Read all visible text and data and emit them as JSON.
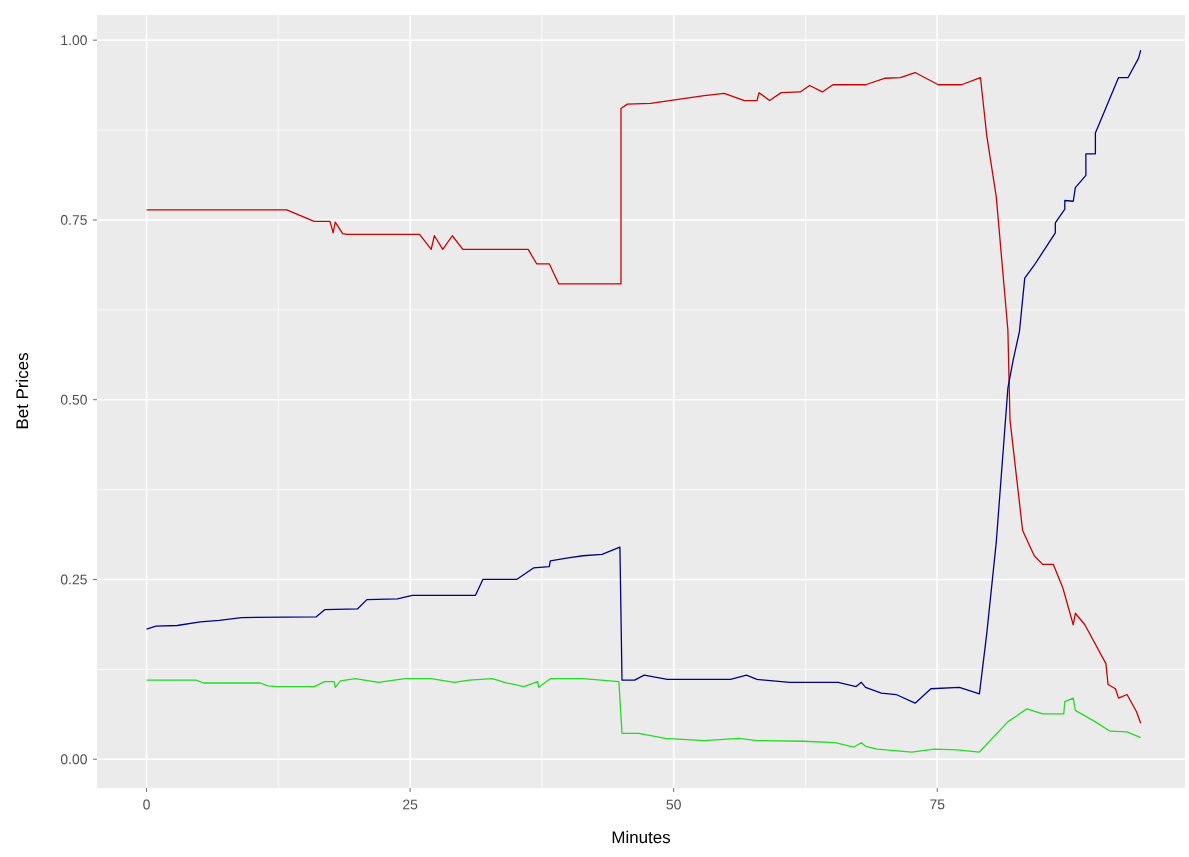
{
  "chart_data": {
    "type": "line",
    "xlabel": "Minutes",
    "ylabel": "Bet Prices",
    "xlim": [
      -4.7,
      98.5
    ],
    "ylim": [
      -0.04,
      1.035
    ],
    "xticks": [
      0,
      25,
      50,
      75
    ],
    "yticks": [
      {
        "value": 0,
        "label": "0.00"
      },
      {
        "value": 0.25,
        "label": "0.25"
      },
      {
        "value": 0.5,
        "label": "0.50"
      },
      {
        "value": 0.75,
        "label": "0.75"
      },
      {
        "value": 1.0,
        "label": "1.00"
      }
    ],
    "grid": true,
    "marker": "none",
    "line_style": "solid",
    "series": [
      {
        "color": "#cd0000",
        "x": [
          0,
          13.3,
          15.9,
          17.0,
          17.4,
          17.7,
          17.9,
          18.6,
          19.0,
          25.9,
          27.0,
          27.3,
          28.1,
          29.0,
          30.0,
          36.2,
          37.0,
          38.2,
          39.1,
          45.0,
          45.0,
          45.6,
          47.8,
          49.6,
          52.9,
          54.8,
          56.7,
          57.9,
          58.1,
          59.1,
          60.2,
          62.0,
          62.9,
          64.1,
          65.1,
          68.2,
          70.0,
          71.5,
          72.9,
          75.1,
          77.3,
          79.1,
          79.7,
          80.6,
          81.7,
          81.9,
          83.1,
          84.2,
          85.0,
          86.0,
          86.9,
          87.9,
          88.1,
          89.0,
          90.0,
          91.0,
          91.2,
          91.9,
          92.2,
          93.0,
          93.9,
          94.3
        ],
        "values": [
          0.764,
          0.764,
          0.748,
          0.748,
          0.748,
          0.732,
          0.747,
          0.731,
          0.73,
          0.73,
          0.709,
          0.728,
          0.709,
          0.728,
          0.709,
          0.709,
          0.689,
          0.689,
          0.661,
          0.661,
          0.905,
          0.911,
          0.912,
          0.916,
          0.923,
          0.926,
          0.916,
          0.916,
          0.927,
          0.916,
          0.927,
          0.928,
          0.937,
          0.928,
          0.938,
          0.938,
          0.947,
          0.948,
          0.955,
          0.938,
          0.938,
          0.948,
          0.867,
          0.782,
          0.597,
          0.472,
          0.318,
          0.283,
          0.271,
          0.271,
          0.239,
          0.187,
          0.203,
          0.187,
          0.16,
          0.133,
          0.104,
          0.098,
          0.085,
          0.09,
          0.066,
          0.05
        ]
      },
      {
        "color": "#00008b",
        "x": [
          0,
          0.9,
          2.9,
          5.1,
          6.9,
          9.0,
          16.1,
          16.9,
          20.0,
          20.9,
          23.8,
          25.2,
          31.2,
          31.9,
          35.1,
          36.7,
          38.2,
          38.3,
          40.0,
          41.4,
          43.2,
          44.9,
          45.1,
          46.3,
          47.2,
          49.4,
          55.4,
          56.9,
          57.9,
          61.0,
          65.6,
          67.3,
          67.8,
          68.2,
          69.7,
          71.1,
          72.9,
          74.4,
          77.1,
          79.0,
          79.7,
          80.6,
          81.7,
          82.2,
          82.8,
          83.3,
          84.2,
          86.2,
          86.2,
          87.1,
          87.1,
          87.9,
          88.1,
          89.1,
          89.1,
          90.0,
          90.0,
          91.2,
          92.2,
          93.1,
          94.1,
          94.3
        ],
        "values": [
          0.181,
          0.185,
          0.186,
          0.191,
          0.193,
          0.197,
          0.198,
          0.208,
          0.209,
          0.222,
          0.223,
          0.228,
          0.228,
          0.25,
          0.25,
          0.266,
          0.268,
          0.276,
          0.28,
          0.283,
          0.285,
          0.295,
          0.11,
          0.11,
          0.117,
          0.111,
          0.111,
          0.117,
          0.111,
          0.107,
          0.107,
          0.101,
          0.107,
          0.1,
          0.092,
          0.09,
          0.078,
          0.098,
          0.1,
          0.091,
          0.175,
          0.302,
          0.516,
          0.555,
          0.595,
          0.669,
          0.687,
          0.732,
          0.746,
          0.765,
          0.777,
          0.776,
          0.795,
          0.812,
          0.842,
          0.842,
          0.871,
          0.913,
          0.948,
          0.948,
          0.975,
          0.986
        ]
      },
      {
        "color": "#22dd22",
        "x": [
          0,
          4.7,
          5.4,
          10.8,
          11.5,
          12.4,
          15.9,
          16.9,
          17.8,
          17.9,
          18.4,
          19.8,
          22.0,
          24.5,
          27.0,
          29.2,
          30.6,
          32.8,
          34.2,
          35.8,
          37.1,
          37.2,
          38.3,
          41.4,
          44.8,
          45.1,
          46.7,
          49.2,
          52.9,
          56.2,
          57.9,
          62.3,
          65.3,
          67.1,
          67.8,
          68.2,
          69.3,
          72.6,
          74.7,
          76.9,
          79.0,
          81.7,
          83.5,
          85.0,
          87.0,
          87.1,
          87.9,
          88.1,
          90.0,
          91.4,
          93.0,
          94.3
        ],
        "values": [
          0.11,
          0.11,
          0.106,
          0.106,
          0.102,
          0.101,
          0.101,
          0.108,
          0.108,
          0.1,
          0.109,
          0.112,
          0.107,
          0.112,
          0.112,
          0.107,
          0.11,
          0.112,
          0.106,
          0.101,
          0.108,
          0.1,
          0.112,
          0.112,
          0.108,
          0.036,
          0.036,
          0.029,
          0.026,
          0.029,
          0.026,
          0.025,
          0.023,
          0.017,
          0.023,
          0.018,
          0.014,
          0.01,
          0.014,
          0.013,
          0.01,
          0.052,
          0.07,
          0.063,
          0.063,
          0.08,
          0.085,
          0.068,
          0.052,
          0.039,
          0.038,
          0.03
        ]
      }
    ]
  }
}
